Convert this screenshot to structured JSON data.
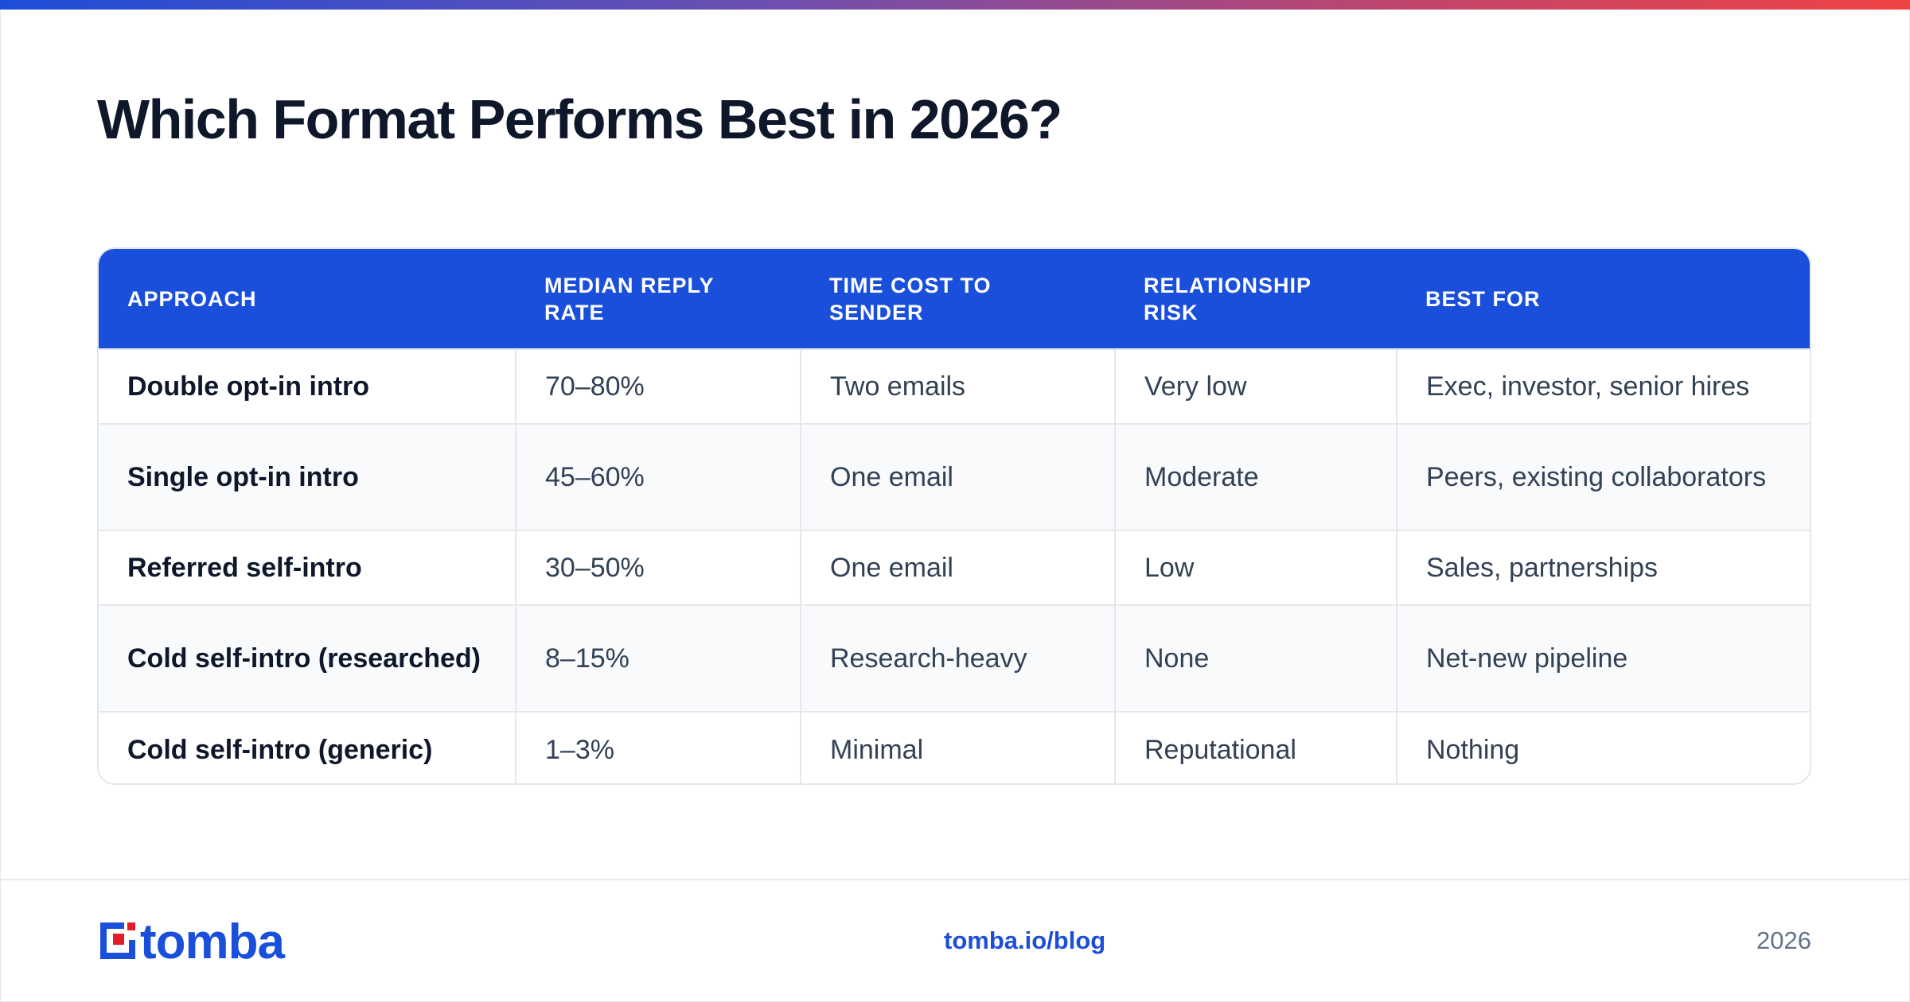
{
  "title": "Which Format Performs Best in 2026?",
  "table": {
    "headers": [
      "APPROACH",
      "MEDIAN REPLY RATE",
      "TIME COST TO SENDER",
      "RELATIONSHIP RISK",
      "BEST FOR"
    ],
    "rows": [
      [
        "Double opt-in intro",
        "70–80%",
        "Two emails",
        "Very low",
        "Exec, investor, senior hires"
      ],
      [
        "Single opt-in intro",
        "45–60%",
        "One email",
        "Moderate",
        "Peers, existing collaborators"
      ],
      [
        "Referred self-intro",
        "30–50%",
        "One email",
        "Low",
        "Sales, partnerships"
      ],
      [
        "Cold self-intro (researched)",
        "8–15%",
        "Research-heavy",
        "None",
        "Net-new pipeline"
      ],
      [
        "Cold self-intro (generic)",
        "1–3%",
        "Minimal",
        "Reputational",
        "Nothing"
      ]
    ]
  },
  "footer": {
    "logo_text": "tomba",
    "logo_icon": "tomba-logo-icon",
    "link": "tomba.io/blog",
    "year": "2026"
  },
  "colors": {
    "accent": "#1a4fdb",
    "logo_red": "#e11d2a",
    "title": "#0f172a",
    "body_text": "#334155",
    "row_alt": "#f8fafc"
  }
}
